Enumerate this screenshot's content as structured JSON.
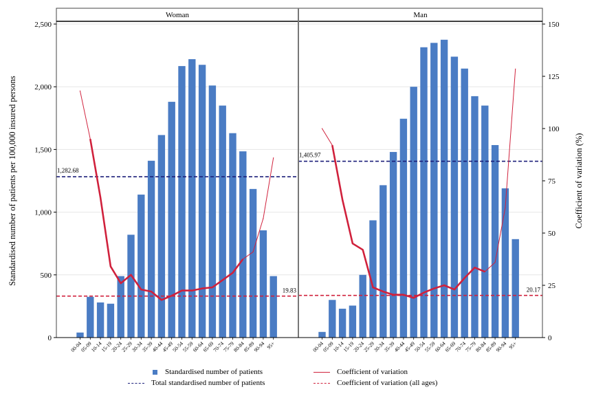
{
  "chart_data": {
    "type": "bar",
    "panels": [
      {
        "title": "Woman",
        "categories": [
          "00-04",
          "05-09",
          "10-14",
          "15-19",
          "20-24",
          "25-29",
          "30-34",
          "35-39",
          "40-44",
          "45-49",
          "50-54",
          "55-59",
          "60-64",
          "65-69",
          "70-74",
          "75-79",
          "80-84",
          "85-89",
          "90-94",
          "95+"
        ],
        "bar_values": [
          40,
          325,
          280,
          270,
          490,
          820,
          1140,
          1410,
          1615,
          1880,
          2165,
          2220,
          2175,
          2010,
          1850,
          1630,
          1485,
          1185,
          855,
          490
        ],
        "cv_values": [
          118,
          95,
          67,
          34,
          26,
          30,
          23,
          22,
          18,
          20,
          22.5,
          22.5,
          23.5,
          24,
          27.5,
          31,
          37.5,
          41,
          57,
          86
        ],
        "total_reference": 1282.68,
        "total_reference_label": "1,282.68",
        "cv_reference": 19.83,
        "cv_reference_label": "19.83"
      },
      {
        "title": "Man",
        "categories": [
          "00-04",
          "05-09",
          "10-14",
          "15-19",
          "20-24",
          "25-29",
          "30-34",
          "35-39",
          "40-44",
          "45-49",
          "50-54",
          "55-59",
          "60-64",
          "65-69",
          "70-74",
          "75-79",
          "80-84",
          "85-89",
          "90-94",
          "95+"
        ],
        "bar_values": [
          45,
          300,
          230,
          255,
          500,
          935,
          1215,
          1480,
          1745,
          2000,
          2315,
          2350,
          2375,
          2240,
          2145,
          1925,
          1850,
          1535,
          1190,
          785
        ],
        "cv_values": [
          100,
          92,
          66,
          45,
          42,
          24,
          22,
          20.5,
          20.5,
          19,
          21.5,
          23.5,
          25,
          23,
          28.5,
          33.5,
          31.5,
          36,
          62,
          128.5
        ],
        "total_reference": 1405.97,
        "total_reference_label": "1,405.97",
        "cv_reference": 20.17,
        "cv_reference_label": "20.17"
      }
    ],
    "y_left": {
      "label": "Standardised number of patients per 100,000 insured persons",
      "range": [
        0,
        2500
      ],
      "ticks": [
        0,
        500,
        1000,
        1500,
        2000,
        2500
      ],
      "tick_labels": [
        "0",
        "500",
        "1,000",
        "1,500",
        "2,000",
        "2,500"
      ]
    },
    "y_right": {
      "label": "Coefficient of variation (%)",
      "range": [
        0,
        150
      ],
      "ticks": [
        0,
        25,
        50,
        75,
        100,
        125,
        150
      ],
      "tick_labels": [
        "0",
        "25",
        "50",
        "75",
        "100",
        "125",
        "150"
      ]
    },
    "grid": true,
    "legend": {
      "position": "bottom",
      "entries": [
        "Standardised number of patients",
        "Coefficient of variation",
        "Total standardised number of patients",
        "Coefficient of variation (all ages)"
      ]
    },
    "colors": {
      "bar": "#4a7cc4",
      "cv_line": "#d0213c",
      "total_reference_line": "#1b1f7a",
      "cv_reference_line": "#d0213c",
      "grid": "#e6e6e6"
    }
  }
}
